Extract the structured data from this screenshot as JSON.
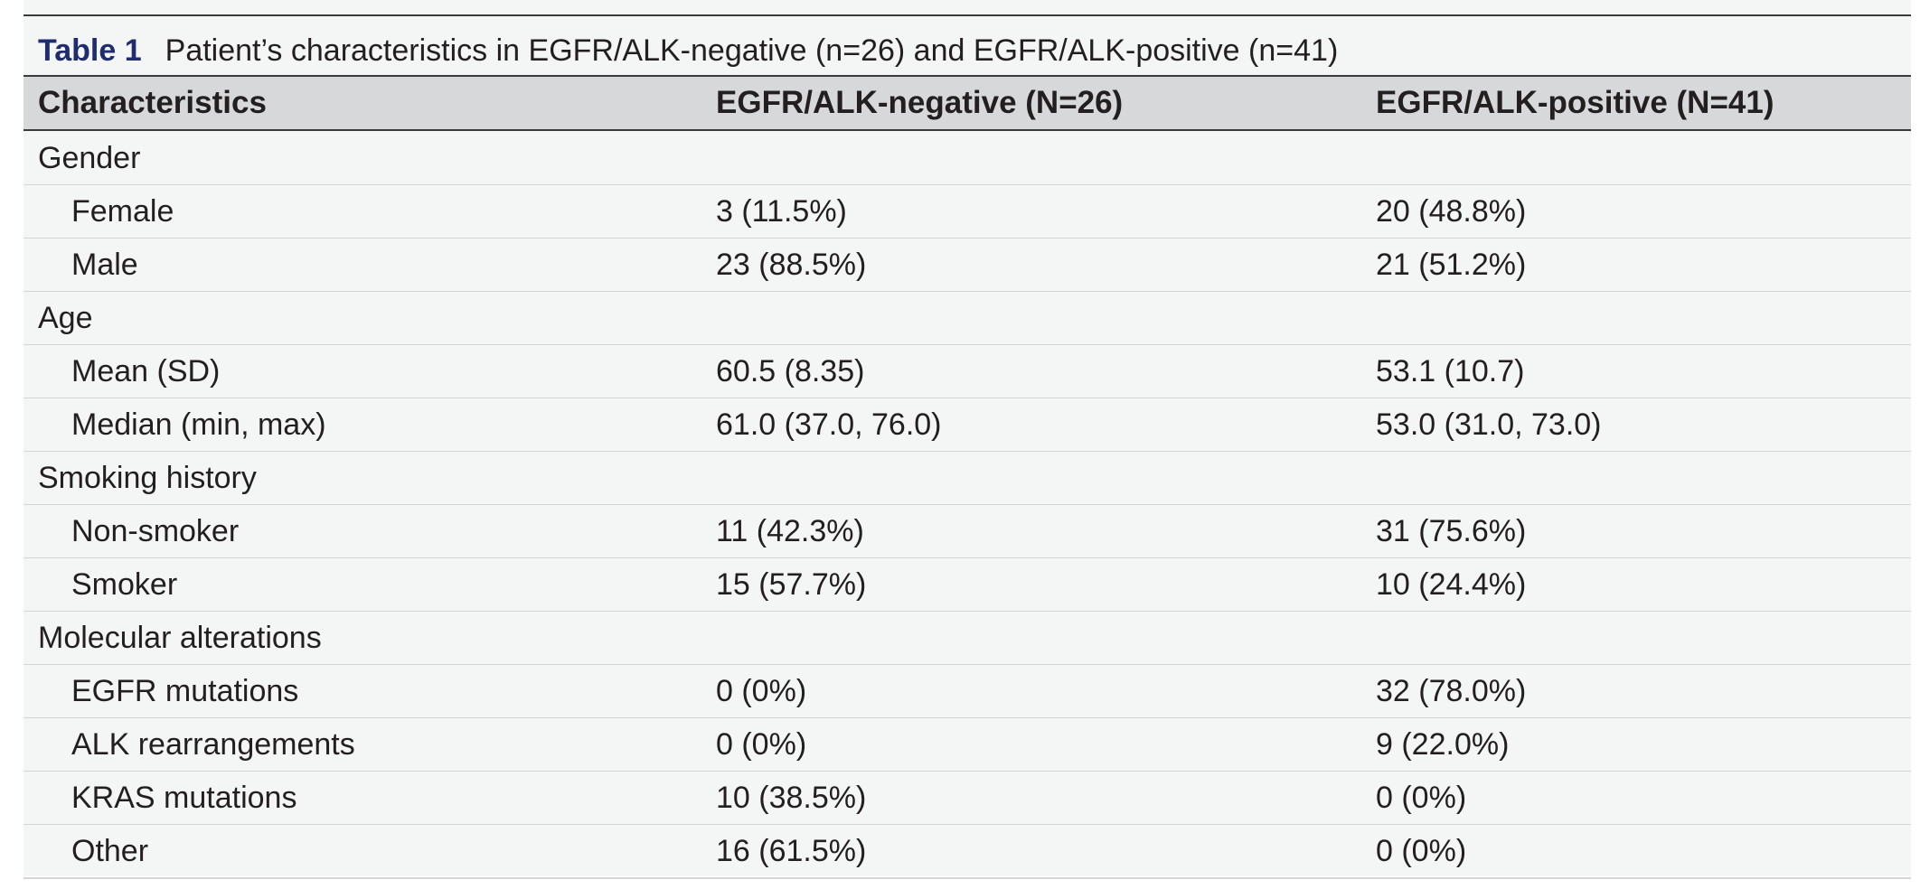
{
  "table": {
    "label": "Table 1",
    "title": "Patient’s characteristics in EGFR/ALK-negative (n=26) and EGFR/ALK-positive (n=41)",
    "headers": [
      "Characteristics",
      "EGFR/ALK-negative (N=26)",
      "EGFR/ALK-positive (N=41)"
    ],
    "rows": [
      {
        "label": "Gender",
        "negative": "",
        "positive": "",
        "group": true
      },
      {
        "label": "Female",
        "negative": "3 (11.5%)",
        "positive": "20 (48.8%)",
        "group": false
      },
      {
        "label": "Male",
        "negative": "23 (88.5%)",
        "positive": "21 (51.2%)",
        "group": false
      },
      {
        "label": "Age",
        "negative": "",
        "positive": "",
        "group": true
      },
      {
        "label": "Mean (SD)",
        "negative": "60.5 (8.35)",
        "positive": "53.1 (10.7)",
        "group": false
      },
      {
        "label": "Median (min, max)",
        "negative": "61.0 (37.0, 76.0)",
        "positive": "53.0 (31.0, 73.0)",
        "group": false
      },
      {
        "label": "Smoking history",
        "negative": "",
        "positive": "",
        "group": true
      },
      {
        "label": "Non-smoker",
        "negative": "11 (42.3%)",
        "positive": "31 (75.6%)",
        "group": false
      },
      {
        "label": "Smoker",
        "negative": "15 (57.7%)",
        "positive": "10 (24.4%)",
        "group": false
      },
      {
        "label": "Molecular alterations",
        "negative": "",
        "positive": "",
        "group": true
      },
      {
        "label": "EGFR mutations",
        "negative": "0 (0%)",
        "positive": "32 (78.0%)",
        "group": false
      },
      {
        "label": "ALK rearrangements",
        "negative": "0 (0%)",
        "positive": "9 (22.0%)",
        "group": false
      },
      {
        "label": "KRAS mutations",
        "negative": "10 (38.5%)",
        "positive": "0 (0%)",
        "group": false
      },
      {
        "label": "Other",
        "negative": "16 (61.5%)",
        "positive": "0 (0%)",
        "group": false
      }
    ]
  }
}
